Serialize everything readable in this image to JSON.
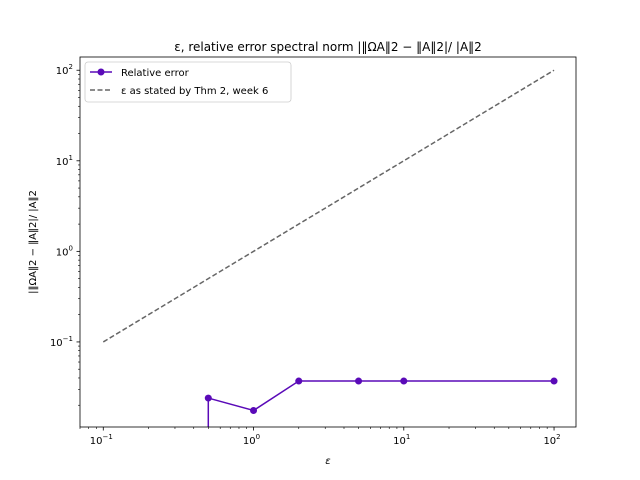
{
  "chart_data": {
    "type": "line",
    "title": "ε, relative error spectral norm |‖ΩA‖2 − ‖A‖2|/ |A‖2",
    "xlabel": "ε",
    "ylabel": "|‖ΩA‖2 − ‖A‖2|/ |A‖2",
    "xscale": "log",
    "yscale": "log",
    "xlim": [
      0.07,
      140
    ],
    "ylim": [
      0.0115,
      140
    ],
    "grid": false,
    "legend_position": "top-left",
    "x_ticks": [
      {
        "value": 0.1,
        "base": "10",
        "exp": "−1"
      },
      {
        "value": 1,
        "base": "10",
        "exp": "0"
      },
      {
        "value": 10,
        "base": "10",
        "exp": "1"
      },
      {
        "value": 100,
        "base": "10",
        "exp": "2"
      }
    ],
    "y_ticks": [
      {
        "value": 0.1,
        "base": "10",
        "exp": "−1"
      },
      {
        "value": 1,
        "base": "10",
        "exp": "0"
      },
      {
        "value": 10,
        "base": "10",
        "exp": "1"
      },
      {
        "value": 100,
        "base": "10",
        "exp": "2"
      }
    ],
    "series": [
      {
        "name": "Relative error",
        "color": "#5a0ab8",
        "style": "solid",
        "marker": "circle",
        "x": [
          0.5,
          0.5,
          1,
          2,
          5,
          10,
          100
        ],
        "y": [
          0.0115,
          0.024,
          0.0175,
          0.037,
          0.037,
          0.037,
          0.037
        ],
        "marker_points": [
          {
            "x": 0.5,
            "y": 0.024
          },
          {
            "x": 1,
            "y": 0.0175
          },
          {
            "x": 2,
            "y": 0.037
          },
          {
            "x": 5,
            "y": 0.037
          },
          {
            "x": 10,
            "y": 0.037
          },
          {
            "x": 100,
            "y": 0.037
          }
        ]
      },
      {
        "name": "ε as stated by Thm 2, week 6",
        "color": "#666666",
        "style": "dashed",
        "marker": "none",
        "x": [
          0.1,
          100
        ],
        "y": [
          0.1,
          100
        ]
      }
    ]
  }
}
